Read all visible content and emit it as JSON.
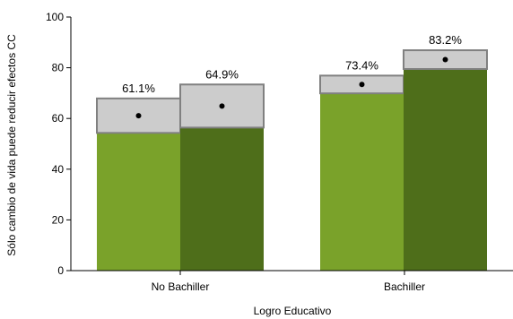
{
  "chart_data": {
    "type": "bar",
    "title": "",
    "xlabel": "Logro Educativo",
    "ylabel": "Sólo cambio de vida puede reducir efectos CC",
    "ylim": [
      0,
      100
    ],
    "yticks": [
      0,
      20,
      40,
      60,
      80,
      100
    ],
    "grid": false,
    "legend": "none",
    "categories": [
      "No Bachiller",
      "Bachiller"
    ],
    "series": [
      {
        "color": "#7aa22a",
        "values": [
          61.1,
          73.4
        ],
        "ci_low": [
          54.3,
          69.9
        ],
        "ci_high": [
          67.9,
          76.9
        ],
        "labels": [
          "61.1%",
          "73.4%"
        ]
      },
      {
        "color": "#4e6e1a",
        "values": [
          64.9,
          83.2
        ],
        "ci_low": [
          56.4,
          79.5
        ],
        "ci_high": [
          73.4,
          86.9
        ],
        "labels": [
          "64.9%",
          "83.2%"
        ]
      }
    ],
    "ci_box_fill": "#cccccc",
    "ci_box_stroke": "#808080"
  }
}
